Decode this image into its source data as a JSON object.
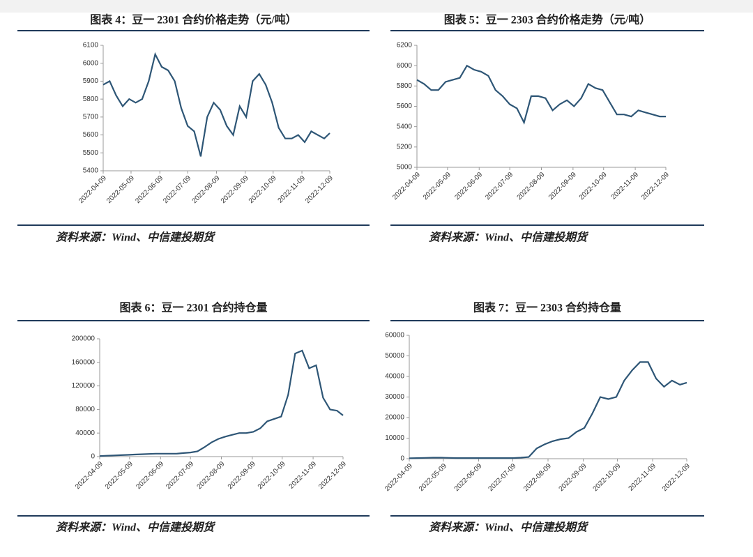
{
  "chart_data": [
    {
      "type": "line",
      "title": "图表 4：豆一 2301 合约价格走势（元/吨）",
      "source": "资料来源：Wind、中信建投期货",
      "color": "#2e5676",
      "x": [
        "2022-04-09",
        "2022-04-16",
        "2022-04-23",
        "2022-04-30",
        "2022-05-07",
        "2022-05-14",
        "2022-05-21",
        "2022-05-28",
        "2022-06-04",
        "2022-06-11",
        "2022-06-18",
        "2022-06-25",
        "2022-07-02",
        "2022-07-09",
        "2022-07-16",
        "2022-07-23",
        "2022-07-30",
        "2022-08-06",
        "2022-08-13",
        "2022-08-20",
        "2022-08-27",
        "2022-09-03",
        "2022-09-10",
        "2022-09-17",
        "2022-09-24",
        "2022-10-01",
        "2022-10-08",
        "2022-10-15",
        "2022-10-22",
        "2022-10-29",
        "2022-11-05",
        "2022-11-12",
        "2022-11-19",
        "2022-11-26",
        "2022-12-03",
        "2022-12-09"
      ],
      "values": [
        5880,
        5900,
        5820,
        5760,
        5800,
        5780,
        5800,
        5900,
        6050,
        5980,
        5960,
        5900,
        5750,
        5650,
        5620,
        5480,
        5700,
        5780,
        5740,
        5650,
        5600,
        5760,
        5700,
        5900,
        5940,
        5880,
        5780,
        5640,
        5580,
        5580,
        5600,
        5560,
        5620,
        5600,
        5580,
        5610
      ],
      "xlim": [
        "2022-04-09",
        "2022-12-09"
      ],
      "xticks": [
        "2022-04-09",
        "2022-05-09",
        "2022-06-09",
        "2022-07-09",
        "2022-08-09",
        "2022-09-09",
        "2022-10-09",
        "2022-11-09",
        "2022-12-09"
      ],
      "ylim": [
        5400,
        6100
      ],
      "yticks": [
        5400,
        5500,
        5600,
        5700,
        5800,
        5900,
        6000,
        6100
      ]
    },
    {
      "type": "line",
      "title": "图表 5：豆一 2303 合约价格走势（元/吨）",
      "source": "资料来源：Wind、中信建投期货",
      "color": "#2e5676",
      "x": [
        "2022-04-09",
        "2022-04-16",
        "2022-04-23",
        "2022-04-30",
        "2022-05-07",
        "2022-05-14",
        "2022-05-21",
        "2022-05-28",
        "2022-06-04",
        "2022-06-11",
        "2022-06-18",
        "2022-06-25",
        "2022-07-02",
        "2022-07-09",
        "2022-07-16",
        "2022-07-23",
        "2022-07-30",
        "2022-08-06",
        "2022-08-13",
        "2022-08-20",
        "2022-08-27",
        "2022-09-03",
        "2022-09-10",
        "2022-09-17",
        "2022-09-24",
        "2022-10-01",
        "2022-10-08",
        "2022-10-15",
        "2022-10-22",
        "2022-10-29",
        "2022-11-05",
        "2022-11-12",
        "2022-11-19",
        "2022-11-26",
        "2022-12-03",
        "2022-12-09"
      ],
      "values": [
        5860,
        5820,
        5760,
        5760,
        5840,
        5860,
        5880,
        6000,
        5960,
        5940,
        5900,
        5760,
        5700,
        5620,
        5580,
        5440,
        5700,
        5700,
        5680,
        5560,
        5620,
        5660,
        5600,
        5680,
        5820,
        5780,
        5760,
        5640,
        5520,
        5520,
        5500,
        5560,
        5540,
        5520,
        5500,
        5500
      ],
      "xlim": [
        "2022-04-09",
        "2022-12-09"
      ],
      "xticks": [
        "2022-04-09",
        "2022-05-09",
        "2022-06-09",
        "2022-07-09",
        "2022-08-09",
        "2022-09-09",
        "2022-10-09",
        "2022-11-09",
        "2022-12-09"
      ],
      "ylim": [
        5000,
        6200
      ],
      "yticks": [
        5000,
        5200,
        5400,
        5600,
        5800,
        6000,
        6200
      ]
    },
    {
      "type": "line",
      "title": "图表 6：豆一 2301 合约持仓量",
      "source": "资料来源：Wind、中信建投期货",
      "color": "#2e5676",
      "x": [
        "2022-04-09",
        "2022-04-16",
        "2022-04-23",
        "2022-04-30",
        "2022-05-07",
        "2022-05-14",
        "2022-05-21",
        "2022-05-28",
        "2022-06-04",
        "2022-06-11",
        "2022-06-18",
        "2022-06-25",
        "2022-07-02",
        "2022-07-09",
        "2022-07-16",
        "2022-07-23",
        "2022-07-30",
        "2022-08-06",
        "2022-08-13",
        "2022-08-20",
        "2022-08-27",
        "2022-09-03",
        "2022-09-10",
        "2022-09-17",
        "2022-09-24",
        "2022-10-01",
        "2022-10-08",
        "2022-10-15",
        "2022-10-22",
        "2022-10-29",
        "2022-11-05",
        "2022-11-12",
        "2022-11-19",
        "2022-11-26",
        "2022-12-03",
        "2022-12-09"
      ],
      "values": [
        1000,
        1500,
        2000,
        2500,
        3000,
        3500,
        4000,
        4500,
        5000,
        5000,
        5000,
        5000,
        6000,
        7000,
        9000,
        16000,
        24000,
        30000,
        34000,
        37000,
        40000,
        40000,
        42000,
        48000,
        60000,
        64000,
        68000,
        105000,
        175000,
        180000,
        150000,
        155000,
        100000,
        80000,
        78000,
        70000
      ],
      "xlim": [
        "2022-04-09",
        "2022-12-09"
      ],
      "xticks": [
        "2022-04-09",
        "2022-05-09",
        "2022-06-09",
        "2022-07-09",
        "2022-08-09",
        "2022-09-09",
        "2022-10-09",
        "2022-11-09",
        "2022-12-09"
      ],
      "ylim": [
        0,
        200000
      ],
      "yticks": [
        0,
        40000,
        80000,
        120000,
        160000,
        200000
      ]
    },
    {
      "type": "line",
      "title": "图表 7：豆一 2303 合约持仓量",
      "source": "资料来源：Wind、中信建投期货",
      "color": "#2e5676",
      "x": [
        "2022-04-09",
        "2022-04-16",
        "2022-04-23",
        "2022-04-30",
        "2022-05-07",
        "2022-05-14",
        "2022-05-21",
        "2022-05-28",
        "2022-06-04",
        "2022-06-11",
        "2022-06-18",
        "2022-06-25",
        "2022-07-02",
        "2022-07-09",
        "2022-07-16",
        "2022-07-23",
        "2022-07-30",
        "2022-08-06",
        "2022-08-13",
        "2022-08-20",
        "2022-08-27",
        "2022-09-03",
        "2022-09-10",
        "2022-09-17",
        "2022-09-24",
        "2022-10-01",
        "2022-10-08",
        "2022-10-15",
        "2022-10-22",
        "2022-10-29",
        "2022-11-05",
        "2022-11-12",
        "2022-11-19",
        "2022-11-26",
        "2022-12-03",
        "2022-12-09"
      ],
      "values": [
        200,
        300,
        400,
        500,
        500,
        400,
        300,
        300,
        300,
        300,
        300,
        300,
        300,
        300,
        500,
        800,
        5000,
        7000,
        8500,
        9500,
        10000,
        13000,
        15000,
        22000,
        30000,
        29000,
        30000,
        38000,
        43000,
        47000,
        47000,
        39000,
        35000,
        38000,
        36000,
        37000
      ],
      "xlim": [
        "2022-04-09",
        "2022-12-09"
      ],
      "xticks": [
        "2022-04-09",
        "2022-05-09",
        "2022-06-09",
        "2022-07-09",
        "2022-08-09",
        "2022-09-09",
        "2022-10-09",
        "2022-11-09",
        "2022-12-09"
      ],
      "ylim": [
        0,
        60000
      ],
      "yticks": [
        0,
        10000,
        20000,
        30000,
        40000,
        50000,
        60000
      ]
    }
  ]
}
